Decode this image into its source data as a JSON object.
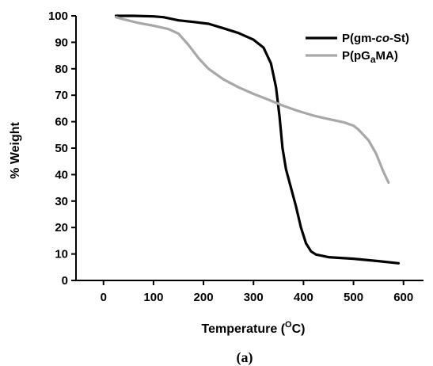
{
  "chart_data": {
    "type": "line",
    "xlabel_main": "Temperature (",
    "xlabel_sup": "O",
    "xlabel_end": "C)",
    "ylabel": "% Weight",
    "caption": "(a)",
    "xlim": [
      -55,
      640
    ],
    "ylim": [
      0,
      100
    ],
    "x_ticks": [
      0,
      100,
      200,
      300,
      400,
      500,
      600
    ],
    "y_ticks": [
      0,
      10,
      20,
      30,
      40,
      50,
      60,
      70,
      80,
      90,
      100
    ],
    "grid": false,
    "legend_position": "top-right",
    "series": [
      {
        "legend_parts": [
          {
            "text": "P(gm-",
            "style": "normal"
          },
          {
            "text": "co",
            "style": "italic"
          },
          {
            "text": "-St)",
            "style": "normal"
          }
        ],
        "color": "#000000",
        "points": [
          [
            25,
            100
          ],
          [
            60,
            100
          ],
          [
            100,
            99.8
          ],
          [
            120,
            99.5
          ],
          [
            150,
            98.3
          ],
          [
            180,
            97.7
          ],
          [
            210,
            97
          ],
          [
            240,
            95.3
          ],
          [
            270,
            93.5
          ],
          [
            300,
            91
          ],
          [
            320,
            88
          ],
          [
            335,
            82
          ],
          [
            345,
            73
          ],
          [
            352,
            62
          ],
          [
            358,
            50
          ],
          [
            365,
            42
          ],
          [
            375,
            35
          ],
          [
            385,
            28
          ],
          [
            395,
            20
          ],
          [
            405,
            14
          ],
          [
            415,
            11
          ],
          [
            425,
            9.8
          ],
          [
            450,
            8.8
          ],
          [
            500,
            8.2
          ],
          [
            550,
            7.3
          ],
          [
            590,
            6.5
          ]
        ]
      },
      {
        "legend_parts": [
          {
            "text": "P(pG",
            "style": "normal"
          },
          {
            "text": "a",
            "style": "sub"
          },
          {
            "text": "MA)",
            "style": "normal"
          }
        ],
        "color": "#a8a8a8",
        "points": [
          [
            25,
            99.5
          ],
          [
            40,
            98.7
          ],
          [
            70,
            97.3
          ],
          [
            100,
            96.3
          ],
          [
            130,
            95
          ],
          [
            150,
            93.3
          ],
          [
            170,
            89
          ],
          [
            190,
            84
          ],
          [
            210,
            80
          ],
          [
            240,
            76
          ],
          [
            270,
            73
          ],
          [
            300,
            70.5
          ],
          [
            330,
            68.3
          ],
          [
            360,
            66
          ],
          [
            390,
            64
          ],
          [
            420,
            62.3
          ],
          [
            450,
            61
          ],
          [
            480,
            59.8
          ],
          [
            500,
            58.5
          ],
          [
            510,
            57
          ],
          [
            530,
            53
          ],
          [
            545,
            48
          ],
          [
            560,
            41
          ],
          [
            570,
            37
          ]
        ]
      }
    ]
  }
}
